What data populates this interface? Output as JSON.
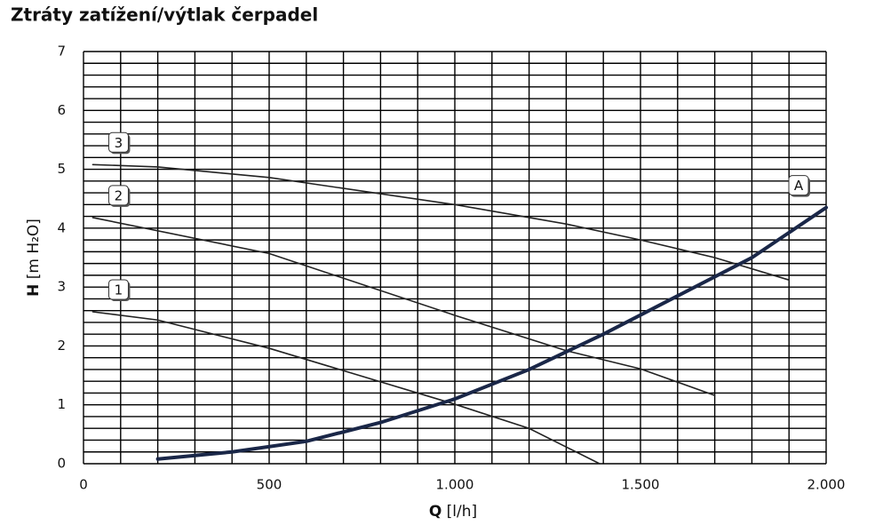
{
  "chart_data": {
    "type": "line",
    "title": "Ztráty zatížení/výtlak čerpadel",
    "x_label": {
      "symbol": "Q",
      "unit": "[l/h]"
    },
    "y_label": {
      "symbol": "H",
      "unit": "[m H₂O]"
    },
    "xlim": [
      0,
      2000
    ],
    "ylim": [
      0,
      7
    ],
    "xticks": [
      0,
      500,
      {
        "value": 1000,
        "label": "1.000"
      },
      {
        "value": 1500,
        "label": "1.500"
      },
      {
        "value": 2000,
        "label": "2.000"
      }
    ],
    "yticks": [
      0,
      1,
      2,
      3,
      4,
      5,
      6,
      7
    ],
    "xgrid": [
      0,
      100,
      200,
      300,
      400,
      500,
      600,
      700,
      800,
      900,
      1000,
      1100,
      1200,
      1300,
      1400,
      1500,
      1600,
      1700,
      1800,
      1900,
      2000
    ],
    "ygrid": [
      0,
      0.2,
      0.4,
      0.6,
      0.8,
      1,
      1.2,
      1.4,
      1.6,
      1.8,
      2,
      2.2,
      2.4,
      2.6,
      2.8,
      3,
      3.2,
      3.4,
      3.6,
      3.8,
      4,
      4.2,
      4.4,
      4.6,
      4.8,
      5,
      5.2,
      5.4,
      5.6,
      5.8,
      6,
      6.2,
      6.4,
      6.6,
      6.8,
      7
    ],
    "grid": true,
    "series": [
      {
        "name": "1",
        "color": "#222",
        "width": 1.6,
        "x": [
          25,
          200,
          500,
          1000,
          1200,
          1390
        ],
        "values": [
          2.58,
          2.44,
          1.96,
          1.01,
          0.6,
          0
        ]
      },
      {
        "name": "2",
        "color": "#222",
        "width": 1.6,
        "x": [
          25,
          500,
          1000,
          1300,
          1500,
          1700
        ],
        "values": [
          4.18,
          3.57,
          2.52,
          1.92,
          1.61,
          1.16
        ]
      },
      {
        "name": "3",
        "color": "#222",
        "width": 1.6,
        "x": [
          25,
          200,
          500,
          1000,
          1300,
          1500,
          1700,
          1900
        ],
        "values": [
          5.08,
          5.04,
          4.86,
          4.4,
          4.07,
          3.8,
          3.5,
          3.12
        ]
      },
      {
        "name": "A",
        "color": "#1a2748",
        "width": 4,
        "x": [
          200,
          400,
          600,
          800,
          1000,
          1200,
          1400,
          1600,
          1800,
          2000
        ],
        "values": [
          0.08,
          0.2,
          0.38,
          0.7,
          1.1,
          1.6,
          2.2,
          2.85,
          3.5,
          4.35
        ]
      }
    ]
  }
}
